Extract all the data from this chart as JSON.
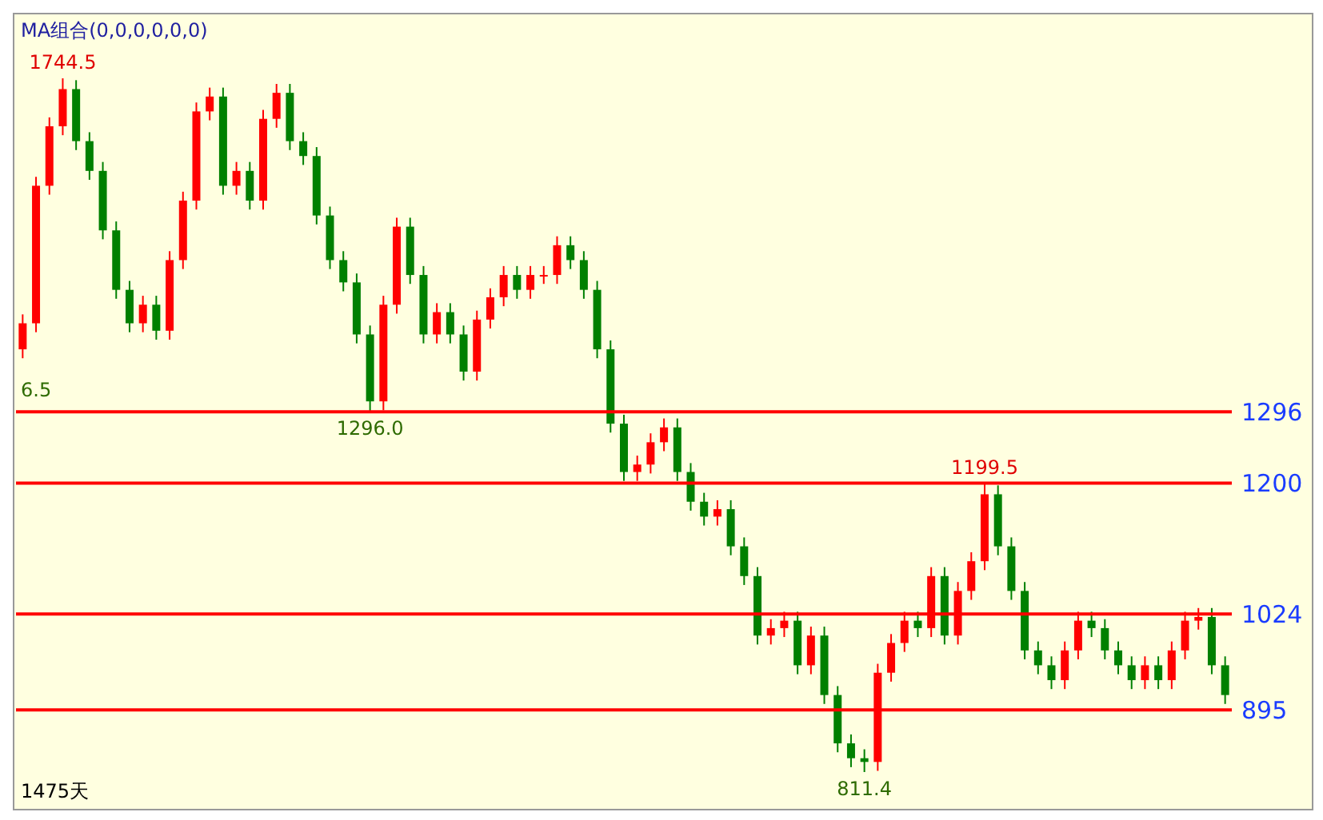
{
  "chart_data": {
    "type": "candlestick",
    "tick_labels": false,
    "colors": [
      "#ff0000",
      "#ff0000",
      "#ff0000",
      "#ff0000",
      "#008000",
      "#008000",
      "#008000",
      "#008000",
      "#008000",
      "#ff0000",
      "#008000",
      "#ff0000",
      "#ff0000",
      "#ff0000",
      "#ff0000",
      "#008000",
      "#ff0000",
      "#008000",
      "#ff0000",
      "#ff0000",
      "#008000",
      "#008000",
      "#008000",
      "#008000",
      "#008000",
      "#008000",
      "#008000",
      "#ff0000",
      "#ff0000",
      "#008000",
      "#008000",
      "#ff0000",
      "#008000",
      "#008000",
      "#ff0000",
      "#ff0000",
      "#ff0000",
      "#008000",
      "#ff0000",
      "#ff0000",
      "#ff0000",
      "#008000",
      "#008000",
      "#008000",
      "#008000",
      "#008000",
      "#ff0000",
      "#ff0000",
      "#ff0000",
      "#008000",
      "#008000",
      "#008000",
      "#ff0000",
      "#008000",
      "#008000",
      "#008000",
      "#ff0000",
      "#ff0000",
      "#008000",
      "#ff0000",
      "#008000",
      "#008000",
      "#008000",
      "#008000",
      "#ff0000",
      "#ff0000",
      "#ff0000",
      "#008000",
      "#ff0000",
      "#008000",
      "#ff0000",
      "#ff0000",
      "#ff0000",
      "#008000",
      "#008000",
      "#008000",
      "#008000",
      "#008000",
      "#ff0000",
      "#ff0000",
      "#008000",
      "#008000",
      "#008000",
      "#008000",
      "#ff0000",
      "#008000",
      "#ff0000",
      "#ff0000",
      "#ff0000",
      "#008000",
      "#008000"
    ],
    "categories": [
      null,
      null,
      null,
      null,
      null,
      null,
      null,
      null,
      null,
      null,
      null,
      null,
      null,
      null,
      null,
      null,
      null,
      null,
      null,
      null,
      null,
      null,
      null,
      null,
      null,
      null,
      null,
      null,
      null,
      null,
      null,
      null,
      null,
      null,
      null,
      null,
      null,
      null,
      null,
      null,
      null,
      null,
      null,
      null,
      null,
      null,
      null,
      null,
      null,
      null,
      null,
      null,
      null,
      null,
      null,
      null,
      null,
      null,
      null,
      null,
      null,
      null,
      null,
      null,
      null,
      null,
      null,
      null,
      null,
      null,
      null,
      null,
      null,
      null,
      null,
      null,
      null,
      null,
      null,
      null,
      null,
      null,
      null,
      null,
      null,
      null,
      null,
      null,
      null,
      null,
      null
    ],
    "ohlc": [
      [
        1380,
        1427,
        1368,
        1415
      ],
      [
        1415,
        1612,
        1403,
        1600
      ],
      [
        1600,
        1692,
        1588,
        1680
      ],
      [
        1680,
        1744.5,
        1668,
        1730
      ],
      [
        1730,
        1742,
        1648,
        1660
      ],
      [
        1660,
        1672,
        1608,
        1620
      ],
      [
        1620,
        1632,
        1528,
        1540
      ],
      [
        1540,
        1552,
        1448,
        1460
      ],
      [
        1460,
        1472,
        1403,
        1415
      ],
      [
        1415,
        1452,
        1403,
        1440
      ],
      [
        1440,
        1452,
        1393,
        1405
      ],
      [
        1405,
        1512,
        1393,
        1500
      ],
      [
        1500,
        1592,
        1488,
        1580
      ],
      [
        1580,
        1712,
        1568,
        1700
      ],
      [
        1700,
        1732,
        1688,
        1720
      ],
      [
        1720,
        1732,
        1588,
        1600
      ],
      [
        1600,
        1632,
        1588,
        1620
      ],
      [
        1620,
        1632,
        1568,
        1580
      ],
      [
        1580,
        1702,
        1568,
        1690
      ],
      [
        1690,
        1737,
        1678,
        1725
      ],
      [
        1725,
        1737,
        1648,
        1660
      ],
      [
        1660,
        1672,
        1628,
        1640
      ],
      [
        1640,
        1652,
        1548,
        1560
      ],
      [
        1560,
        1572,
        1488,
        1500
      ],
      [
        1500,
        1512,
        1458,
        1470
      ],
      [
        1470,
        1482,
        1388,
        1400
      ],
      [
        1400,
        1412,
        1296.0,
        1310
      ],
      [
        1310,
        1452,
        1298,
        1440
      ],
      [
        1440,
        1557,
        1428,
        1545
      ],
      [
        1545,
        1557,
        1468,
        1480
      ],
      [
        1480,
        1492,
        1388,
        1400
      ],
      [
        1400,
        1442,
        1388,
        1430
      ],
      [
        1430,
        1442,
        1388,
        1400
      ],
      [
        1400,
        1412,
        1338,
        1350
      ],
      [
        1350,
        1432,
        1338,
        1420
      ],
      [
        1420,
        1462,
        1408,
        1450
      ],
      [
        1450,
        1492,
        1438,
        1480
      ],
      [
        1480,
        1492,
        1448,
        1460
      ],
      [
        1460,
        1492,
        1448,
        1480
      ],
      [
        1480,
        1492,
        1468,
        1480
      ],
      [
        1480,
        1532,
        1468,
        1520
      ],
      [
        1520,
        1532,
        1488,
        1500
      ],
      [
        1500,
        1512,
        1448,
        1460
      ],
      [
        1460,
        1472,
        1368,
        1380
      ],
      [
        1380,
        1392,
        1268,
        1280
      ],
      [
        1280,
        1292,
        1203,
        1215
      ],
      [
        1215,
        1237,
        1203,
        1225
      ],
      [
        1225,
        1267,
        1213,
        1255
      ],
      [
        1255,
        1287,
        1243,
        1275
      ],
      [
        1275,
        1287,
        1203,
        1215
      ],
      [
        1215,
        1227,
        1163,
        1175
      ],
      [
        1175,
        1187,
        1143,
        1155
      ],
      [
        1155,
        1177,
        1143,
        1165
      ],
      [
        1165,
        1177,
        1103,
        1115
      ],
      [
        1115,
        1127,
        1063,
        1075
      ],
      [
        1075,
        1087,
        983,
        995
      ],
      [
        995,
        1017,
        983,
        1005
      ],
      [
        1005,
        1027,
        993,
        1015
      ],
      [
        1015,
        1027,
        943,
        955
      ],
      [
        955,
        1007,
        943,
        995
      ],
      [
        995,
        1007,
        903,
        915
      ],
      [
        915,
        927,
        838,
        850
      ],
      [
        850,
        862,
        818,
        830
      ],
      [
        830,
        842,
        811.4,
        825
      ],
      [
        825,
        957,
        813,
        945
      ],
      [
        945,
        997,
        933,
        985
      ],
      [
        985,
        1027,
        973,
        1015
      ],
      [
        1015,
        1027,
        993,
        1005
      ],
      [
        1005,
        1087,
        993,
        1075
      ],
      [
        1075,
        1087,
        983,
        995
      ],
      [
        995,
        1067,
        983,
        1055
      ],
      [
        1055,
        1107,
        1043,
        1095
      ],
      [
        1095,
        1199.5,
        1083,
        1185
      ],
      [
        1185,
        1197,
        1103,
        1115
      ],
      [
        1115,
        1127,
        1043,
        1055
      ],
      [
        1055,
        1067,
        963,
        975
      ],
      [
        975,
        987,
        943,
        955
      ],
      [
        955,
        967,
        923,
        935
      ],
      [
        935,
        987,
        923,
        975
      ],
      [
        975,
        1027,
        963,
        1015
      ],
      [
        1015,
        1027,
        993,
        1005
      ],
      [
        1005,
        1017,
        963,
        975
      ],
      [
        975,
        987,
        943,
        955
      ],
      [
        955,
        967,
        923,
        935
      ],
      [
        935,
        967,
        923,
        955
      ],
      [
        955,
        967,
        923,
        935
      ],
      [
        935,
        987,
        923,
        975
      ],
      [
        975,
        1027,
        963,
        1015
      ],
      [
        1015,
        1032,
        1003,
        1020
      ],
      [
        1020,
        1032,
        943,
        955
      ],
      [
        955,
        967,
        903,
        915
      ]
    ],
    "ref_lines": [
      {
        "axis": "y",
        "value": 1296,
        "label": "1296",
        "color": "#ff0000"
      },
      {
        "axis": "y",
        "value": 1200,
        "label": "1200",
        "color": "#ff0000"
      },
      {
        "axis": "y",
        "value": 1024,
        "label": "1024",
        "color": "#ff0000"
      },
      {
        "axis": "y",
        "value": 895,
        "label": "895",
        "color": "#ff0000"
      }
    ],
    "annotations": [
      "MA组合(0,0,0,0,0,0)",
      {
        "text": "1744.5",
        "y": 1744.5
      },
      "6.5",
      {
        "text": "1296.0",
        "y": 1296.0
      },
      {
        "text": "1199.5",
        "y": 1199.5
      },
      {
        "text": "811.4",
        "y": 811.4
      },
      "1475天"
    ]
  }
}
